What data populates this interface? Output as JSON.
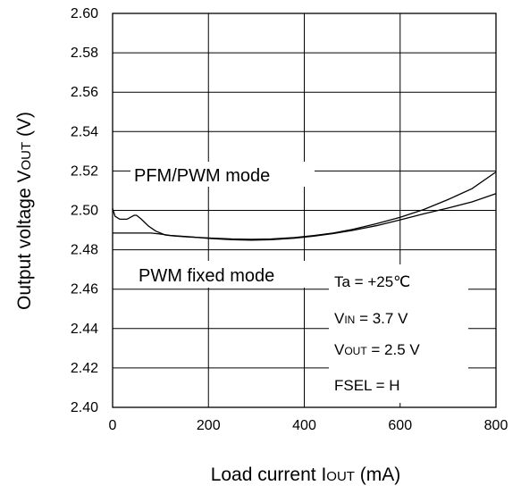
{
  "chart_data": {
    "type": "line",
    "xlabel": {
      "main": "Load current I",
      "sub": "OUT",
      "tail": " (mA)"
    },
    "ylabel": {
      "main": "Output voltage V",
      "sub": "OUT",
      "tail": " (V)"
    },
    "xlim": [
      0,
      800
    ],
    "ylim": [
      2.4,
      2.6
    ],
    "x_ticks": [
      0,
      200,
      400,
      600,
      800
    ],
    "x_tick_labels": [
      "0",
      "200",
      "400",
      "600",
      "800"
    ],
    "y_ticks": [
      2.4,
      2.42,
      2.44,
      2.46,
      2.48,
      2.5,
      2.52,
      2.54,
      2.56,
      2.58,
      2.6
    ],
    "y_tick_labels": [
      "2.40",
      "2.42",
      "2.44",
      "2.46",
      "2.48",
      "2.50",
      "2.52",
      "2.54",
      "2.56",
      "2.58",
      "2.60"
    ],
    "grid": true,
    "series": [
      {
        "name": "PFM/PWM mode",
        "x": [
          0,
          5,
          15,
          30,
          45,
          50,
          60,
          75,
          90,
          110,
          130,
          160,
          200,
          250,
          290,
          330,
          380,
          420,
          460,
          500,
          550,
          600,
          650,
          700,
          750,
          800
        ],
        "y": [
          2.501,
          2.497,
          2.4955,
          2.4955,
          2.4975,
          2.4975,
          2.4955,
          2.492,
          2.4895,
          2.4875,
          2.487,
          2.4865,
          2.486,
          2.4855,
          2.4853,
          2.4855,
          2.4862,
          2.4872,
          2.4885,
          2.4903,
          2.4932,
          2.4965,
          2.5005,
          2.5055,
          2.511,
          2.5195
        ]
      },
      {
        "name": "PWM fixed mode",
        "x": [
          0,
          40,
          80,
          100,
          120,
          160,
          200,
          250,
          290,
          330,
          380,
          420,
          460,
          500,
          550,
          600,
          650,
          700,
          750,
          800
        ],
        "y": [
          2.4885,
          2.4885,
          2.4885,
          2.488,
          2.4873,
          2.4866,
          2.4858,
          2.4851,
          2.4849,
          2.4851,
          2.4859,
          2.4869,
          2.4882,
          2.4898,
          2.4922,
          2.4952,
          2.4983,
          2.5012,
          2.5043,
          2.5085
        ]
      }
    ],
    "annotations": {
      "ta": "Ta = +25℃",
      "vin_main": "V",
      "vin_sub": "IN",
      "vin_tail": " = 3.7 V",
      "vout_main": "V",
      "vout_sub": "OUT",
      "vout_tail": " = 2.5 V",
      "fsel": "FSEL = H"
    }
  }
}
